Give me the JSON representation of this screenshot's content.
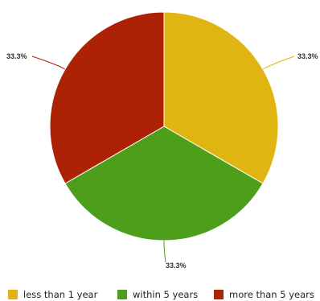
{
  "chart_data": {
    "type": "pie",
    "title": "",
    "categories": [
      "less than 1 year",
      "within 5 years",
      "more than 5 years"
    ],
    "values": [
      33.3,
      33.3,
      33.3
    ],
    "data_labels": [
      "33.3%",
      "33.3%",
      "33.3%"
    ],
    "colors": [
      "#e0b512",
      "#4d9f1b",
      "#ad2204"
    ],
    "legend": {
      "position": "bottom",
      "items": [
        {
          "label": "less than 1 year",
          "color": "#e0b512"
        },
        {
          "label": "within 5 years",
          "color": "#4d9f1b"
        },
        {
          "label": "more than 5 years",
          "color": "#ad2204"
        }
      ]
    }
  }
}
